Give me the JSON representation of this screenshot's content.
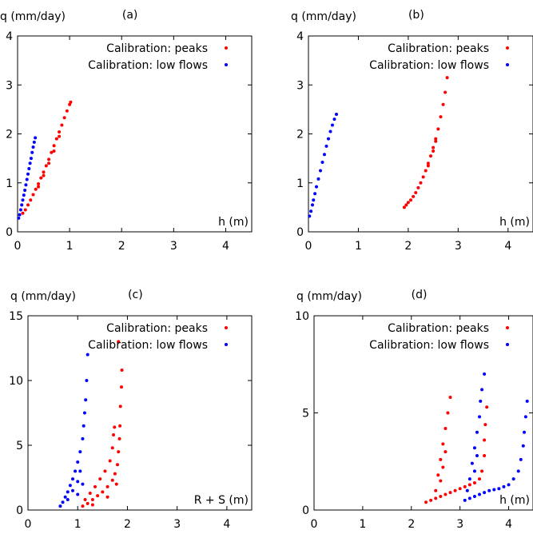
{
  "colors": {
    "peaks": "#ff0000",
    "low": "#0000ff"
  },
  "chart_data": [
    {
      "id": "a",
      "type": "scatter",
      "panel_label": "(a)",
      "ylabel": "q (mm/day)",
      "xlabel": "h (m)",
      "xlim": [
        0,
        4.5
      ],
      "ylim": [
        0,
        4
      ],
      "xticks": [
        "0",
        "1",
        "2",
        "3",
        "4"
      ],
      "yticks": [
        "0",
        "1",
        "2",
        "3",
        "4"
      ],
      "series": [
        {
          "name": "Calibration: peaks",
          "color": "#ff0000",
          "points": [
            [
              0.1,
              0.38
            ],
            [
              0.15,
              0.45
            ],
            [
              0.2,
              0.55
            ],
            [
              0.25,
              0.65
            ],
            [
              0.3,
              0.76
            ],
            [
              0.35,
              0.87
            ],
            [
              0.4,
              0.98
            ],
            [
              0.45,
              1.1
            ],
            [
              0.5,
              1.22
            ],
            [
              0.55,
              1.35
            ],
            [
              0.6,
              1.48
            ],
            [
              0.65,
              1.62
            ],
            [
              0.7,
              1.76
            ],
            [
              0.75,
              1.9
            ],
            [
              0.8,
              2.04
            ],
            [
              0.85,
              2.18
            ],
            [
              0.9,
              2.33
            ],
            [
              0.95,
              2.47
            ],
            [
              1.0,
              2.6
            ],
            [
              1.02,
              2.65
            ],
            [
              0.6,
              1.4
            ],
            [
              0.7,
              1.65
            ],
            [
              0.8,
              1.95
            ],
            [
              0.5,
              1.15
            ],
            [
              0.4,
              0.92
            ]
          ]
        },
        {
          "name": "Calibration: low flows",
          "color": "#0000ff",
          "points": [
            [
              0.02,
              0.28
            ],
            [
              0.04,
              0.35
            ],
            [
              0.06,
              0.45
            ],
            [
              0.08,
              0.55
            ],
            [
              0.1,
              0.65
            ],
            [
              0.12,
              0.75
            ],
            [
              0.14,
              0.85
            ],
            [
              0.16,
              0.96
            ],
            [
              0.18,
              1.07
            ],
            [
              0.2,
              1.18
            ],
            [
              0.22,
              1.29
            ],
            [
              0.24,
              1.4
            ],
            [
              0.26,
              1.5
            ],
            [
              0.28,
              1.62
            ],
            [
              0.3,
              1.73
            ],
            [
              0.32,
              1.83
            ],
            [
              0.34,
              1.92
            ]
          ]
        }
      ]
    },
    {
      "id": "b",
      "type": "scatter",
      "panel_label": "(b)",
      "ylabel": "q (mm/day)",
      "xlabel": "h (m)",
      "xlim": [
        0,
        4.5
      ],
      "ylim": [
        0,
        4
      ],
      "xticks": [
        "0",
        "1",
        "2",
        "3",
        "4"
      ],
      "yticks": [
        "0",
        "1",
        "2",
        "3",
        "4"
      ],
      "series": [
        {
          "name": "Calibration: peaks",
          "color": "#ff0000",
          "points": [
            [
              1.92,
              0.5
            ],
            [
              1.96,
              0.55
            ],
            [
              2.0,
              0.6
            ],
            [
              2.05,
              0.65
            ],
            [
              2.1,
              0.72
            ],
            [
              2.15,
              0.8
            ],
            [
              2.2,
              0.9
            ],
            [
              2.25,
              1.0
            ],
            [
              2.3,
              1.12
            ],
            [
              2.35,
              1.25
            ],
            [
              2.4,
              1.4
            ],
            [
              2.45,
              1.55
            ],
            [
              2.5,
              1.72
            ],
            [
              2.55,
              1.9
            ],
            [
              2.6,
              2.1
            ],
            [
              2.65,
              2.35
            ],
            [
              2.7,
              2.6
            ],
            [
              2.74,
              2.85
            ],
            [
              2.78,
              3.15
            ],
            [
              2.5,
              1.65
            ],
            [
              2.4,
              1.35
            ],
            [
              2.55,
              1.85
            ]
          ]
        },
        {
          "name": "Calibration: low flows",
          "color": "#0000ff",
          "points": [
            [
              0.02,
              0.32
            ],
            [
              0.05,
              0.42
            ],
            [
              0.08,
              0.55
            ],
            [
              0.1,
              0.65
            ],
            [
              0.13,
              0.78
            ],
            [
              0.16,
              0.92
            ],
            [
              0.2,
              1.08
            ],
            [
              0.24,
              1.25
            ],
            [
              0.28,
              1.42
            ],
            [
              0.32,
              1.58
            ],
            [
              0.36,
              1.75
            ],
            [
              0.4,
              1.9
            ],
            [
              0.44,
              2.05
            ],
            [
              0.48,
              2.18
            ],
            [
              0.52,
              2.3
            ],
            [
              0.56,
              2.4
            ]
          ]
        }
      ]
    },
    {
      "id": "c",
      "type": "scatter",
      "panel_label": "(c)",
      "ylabel": "q (mm/day)",
      "xlabel": "R + S (m)",
      "xlim": [
        0,
        4.5
      ],
      "ylim": [
        0,
        15
      ],
      "xticks": [
        "0",
        "1",
        "2",
        "3",
        "4"
      ],
      "yticks": [
        "0",
        "5",
        "10",
        "15"
      ],
      "series": [
        {
          "name": "Calibration: peaks",
          "color": "#ff0000",
          "points": [
            [
              1.1,
              0.3
            ],
            [
              1.2,
              0.5
            ],
            [
              1.3,
              0.8
            ],
            [
              1.4,
              1.1
            ],
            [
              1.5,
              1.4
            ],
            [
              1.6,
              1.8
            ],
            [
              1.7,
              2.3
            ],
            [
              1.75,
              2.8
            ],
            [
              1.8,
              3.5
            ],
            [
              1.82,
              4.5
            ],
            [
              1.84,
              5.5
            ],
            [
              1.85,
              6.5
            ],
            [
              1.86,
              8.0
            ],
            [
              1.88,
              9.5
            ],
            [
              1.89,
              10.8
            ],
            [
              1.15,
              0.8
            ],
            [
              1.25,
              1.3
            ],
            [
              1.35,
              1.8
            ],
            [
              1.45,
              2.4
            ],
            [
              1.55,
              3.0
            ],
            [
              1.65,
              3.8
            ],
            [
              1.7,
              4.8
            ],
            [
              1.72,
              5.8
            ],
            [
              1.74,
              6.4
            ],
            [
              1.78,
              2.0
            ],
            [
              1.82,
              13.0
            ],
            [
              1.3,
              0.4
            ],
            [
              1.6,
              1.0
            ]
          ]
        },
        {
          "name": "Calibration: low flows",
          "color": "#0000ff",
          "points": [
            [
              0.65,
              0.3
            ],
            [
              0.7,
              0.6
            ],
            [
              0.75,
              1.0
            ],
            [
              0.8,
              1.4
            ],
            [
              0.85,
              1.9
            ],
            [
              0.9,
              2.4
            ],
            [
              0.95,
              3.0
            ],
            [
              1.0,
              3.7
            ],
            [
              1.05,
              4.5
            ],
            [
              1.1,
              5.5
            ],
            [
              1.12,
              6.5
            ],
            [
              1.14,
              7.5
            ],
            [
              1.16,
              8.5
            ],
            [
              1.18,
              10.0
            ],
            [
              1.2,
              12.0
            ],
            [
              0.8,
              0.8
            ],
            [
              0.9,
              1.5
            ],
            [
              1.0,
              2.2
            ],
            [
              1.05,
              3.0
            ],
            [
              1.1,
              2.0
            ],
            [
              1.0,
              1.2
            ]
          ]
        }
      ]
    },
    {
      "id": "d",
      "type": "scatter",
      "panel_label": "(d)",
      "ylabel": "q (mm/day)",
      "xlabel": "h (m)",
      "xlim": [
        0,
        4.5
      ],
      "ylim": [
        0,
        10
      ],
      "xticks": [
        "0",
        "1",
        "2",
        "3",
        "4"
      ],
      "yticks": [
        "0",
        "5",
        "10"
      ],
      "series": [
        {
          "name": "Calibration: peaks",
          "color": "#ff0000",
          "points": [
            [
              2.3,
              0.4
            ],
            [
              2.4,
              0.5
            ],
            [
              2.5,
              0.6
            ],
            [
              2.6,
              0.7
            ],
            [
              2.7,
              0.8
            ],
            [
              2.8,
              0.9
            ],
            [
              2.9,
              1.0
            ],
            [
              3.0,
              1.1
            ],
            [
              3.1,
              1.2
            ],
            [
              3.2,
              1.3
            ],
            [
              3.3,
              1.4
            ],
            [
              3.4,
              1.6
            ],
            [
              3.45,
              2.0
            ],
            [
              3.5,
              2.8
            ],
            [
              3.5,
              3.6
            ],
            [
              3.52,
              4.4
            ],
            [
              3.55,
              5.3
            ],
            [
              2.5,
              1.0
            ],
            [
              2.55,
              1.8
            ],
            [
              2.6,
              2.6
            ],
            [
              2.65,
              3.4
            ],
            [
              2.7,
              4.2
            ],
            [
              2.75,
              5.0
            ],
            [
              2.8,
              5.8
            ],
            [
              2.6,
              1.5
            ],
            [
              2.65,
              2.2
            ],
            [
              2.7,
              3.0
            ]
          ]
        },
        {
          "name": "Calibration: low flows",
          "color": "#0000ff",
          "points": [
            [
              3.1,
              0.5
            ],
            [
              3.2,
              0.6
            ],
            [
              3.3,
              0.7
            ],
            [
              3.4,
              0.8
            ],
            [
              3.5,
              0.9
            ],
            [
              3.6,
              1.0
            ],
            [
              3.7,
              1.05
            ],
            [
              3.8,
              1.1
            ],
            [
              3.9,
              1.2
            ],
            [
              4.0,
              1.3
            ],
            [
              4.1,
              1.6
            ],
            [
              4.2,
              2.0
            ],
            [
              4.25,
              2.6
            ],
            [
              4.3,
              3.3
            ],
            [
              4.32,
              4.0
            ],
            [
              4.35,
              4.8
            ],
            [
              4.38,
              5.6
            ],
            [
              3.15,
              1.0
            ],
            [
              3.2,
              1.6
            ],
            [
              3.25,
              2.4
            ],
            [
              3.3,
              3.2
            ],
            [
              3.35,
              4.0
            ],
            [
              3.4,
              4.8
            ],
            [
              3.42,
              5.6
            ],
            [
              3.45,
              6.2
            ],
            [
              3.5,
              7.0
            ],
            [
              3.3,
              2.0
            ],
            [
              3.35,
              2.8
            ]
          ]
        }
      ]
    }
  ]
}
